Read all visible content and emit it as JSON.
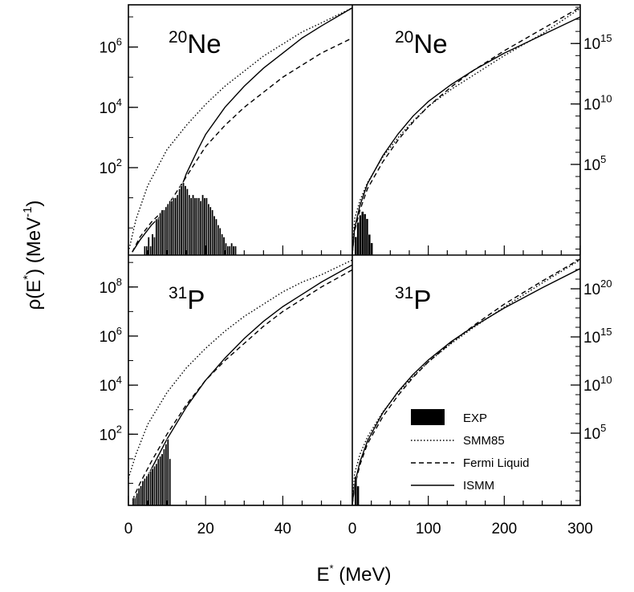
{
  "chart_data": [
    {
      "type": "line",
      "panel": "top-left",
      "nucleus": {
        "mass": "20",
        "symbol": "Ne"
      },
      "xlim": [
        0,
        58
      ],
      "y_log10_range": [
        -0.9,
        7.4
      ],
      "y_ticks": [
        {
          "base": "10",
          "exp": "2",
          "log": 2
        },
        {
          "base": "10",
          "exp": "4",
          "log": 4
        },
        {
          "base": "10",
          "exp": "6",
          "log": 6
        }
      ],
      "series": [
        {
          "id": "smm85",
          "style": "dotted",
          "x": [
            0,
            2,
            5,
            10,
            15,
            20,
            25,
            30,
            35,
            40,
            45,
            50,
            58
          ],
          "y": [
            -0.8,
            0.3,
            1.4,
            2.6,
            3.4,
            4.1,
            4.7,
            5.2,
            5.7,
            6.1,
            6.5,
            6.8,
            7.3
          ]
        },
        {
          "id": "fermi",
          "style": "dashed",
          "x": [
            1,
            3,
            6,
            10,
            15,
            20,
            25,
            30,
            35,
            40,
            45,
            50,
            58
          ],
          "y": [
            -0.8,
            -0.3,
            0.2,
            0.7,
            1.7,
            2.7,
            3.4,
            4.0,
            4.5,
            5.0,
            5.4,
            5.8,
            6.3
          ]
        },
        {
          "id": "ismm",
          "style": "solid",
          "x": [
            1,
            3,
            6,
            10,
            13,
            15,
            18,
            20,
            25,
            30,
            35,
            40,
            45,
            50,
            58
          ],
          "y": [
            -0.8,
            -0.4,
            0.1,
            0.6,
            1.1,
            1.8,
            2.6,
            3.1,
            4.0,
            4.7,
            5.3,
            5.8,
            6.3,
            6.7,
            7.3
          ]
        },
        {
          "id": "exp",
          "style": "histogram",
          "bin_width": 0.5,
          "x": [
            4,
            4.5,
            5,
            5.5,
            6,
            6.5,
            7,
            7.5,
            8,
            8.5,
            9,
            9.5,
            10,
            10.5,
            11,
            11.5,
            12,
            12.5,
            13,
            13.5,
            14,
            14.5,
            15,
            15.5,
            16,
            16.5,
            17,
            17.5,
            18,
            18.5,
            19,
            19.5,
            20,
            20.5,
            21,
            21.5,
            22,
            22.5,
            23,
            23.5,
            24,
            24.5,
            25,
            25.5,
            26,
            26.5,
            27,
            27.5
          ],
          "y": [
            -0.6,
            -0.6,
            -0.3,
            -0.6,
            -0.2,
            -0.3,
            0.3,
            0.3,
            0.5,
            0.6,
            0.6,
            0.7,
            0.8,
            0.9,
            0.9,
            1.0,
            1.0,
            1.1,
            1.3,
            1.4,
            1.5,
            1.4,
            1.3,
            1.1,
            1.0,
            1.1,
            1.0,
            1.0,
            1.0,
            0.9,
            1.1,
            1.0,
            1.0,
            0.8,
            0.7,
            0.6,
            0.4,
            0.3,
            0.1,
            0.0,
            -0.2,
            -0.3,
            -0.5,
            -0.6,
            -0.6,
            -0.5,
            -0.6,
            -0.6
          ]
        }
      ]
    },
    {
      "type": "line",
      "panel": "top-right",
      "nucleus": {
        "mass": "20",
        "symbol": "Ne"
      },
      "xlim": [
        0,
        300
      ],
      "y_log10_range": [
        -2.5,
        18.2
      ],
      "y_ticks": [
        {
          "base": "10",
          "exp": "5",
          "log": 5
        },
        {
          "base": "10",
          "exp": "10",
          "log": 10
        },
        {
          "base": "10",
          "exp": "15",
          "log": 15
        }
      ],
      "series": [
        {
          "id": "smm85",
          "style": "dotted",
          "x": [
            0,
            3,
            10,
            20,
            40,
            60,
            80,
            100,
            130,
            160,
            200,
            250,
            300
          ],
          "y": [
            -2.4,
            0.5,
            2.0,
            3.5,
            5.6,
            7.2,
            8.6,
            9.8,
            11.2,
            12.4,
            14.0,
            15.8,
            17.9
          ]
        },
        {
          "id": "fermi",
          "style": "dashed",
          "x": [
            0,
            3,
            10,
            20,
            40,
            60,
            80,
            100,
            130,
            160,
            200,
            250,
            300
          ],
          "y": [
            -2.4,
            -0.5,
            1.2,
            3.0,
            5.2,
            7.0,
            8.5,
            9.8,
            11.4,
            12.8,
            14.4,
            16.2,
            18.0
          ]
        },
        {
          "id": "ismm",
          "style": "solid",
          "x": [
            0,
            3,
            10,
            20,
            40,
            60,
            80,
            100,
            130,
            160,
            200,
            250,
            300
          ],
          "y": [
            -2.4,
            -0.3,
            1.6,
            3.4,
            5.7,
            7.5,
            9.0,
            10.2,
            11.6,
            12.8,
            14.2,
            15.7,
            17.2
          ]
        },
        {
          "id": "exp",
          "style": "histogram",
          "bin_width": 3,
          "x": [
            3,
            6,
            9,
            12,
            15,
            18,
            21,
            24
          ],
          "y": [
            -1.0,
            0.2,
            0.8,
            1.1,
            0.9,
            0.5,
            -0.8,
            -1.5
          ]
        }
      ]
    },
    {
      "type": "line",
      "panel": "bottom-left",
      "nucleus": {
        "mass": "31",
        "symbol": "P"
      },
      "xlim": [
        0,
        58
      ],
      "y_log10_range": [
        -0.9,
        9.3
      ],
      "y_ticks": [
        {
          "base": "10",
          "exp": "2",
          "log": 2
        },
        {
          "base": "10",
          "exp": "4",
          "log": 4
        },
        {
          "base": "10",
          "exp": "6",
          "log": 6
        },
        {
          "base": "10",
          "exp": "8",
          "log": 8
        }
      ],
      "series": [
        {
          "id": "smm85",
          "style": "dotted",
          "x": [
            0,
            2,
            5,
            10,
            15,
            20,
            25,
            30,
            35,
            40,
            45,
            50,
            58
          ],
          "y": [
            0.2,
            1.2,
            2.4,
            3.7,
            4.7,
            5.5,
            6.2,
            6.8,
            7.3,
            7.8,
            8.2,
            8.5,
            9.1
          ]
        },
        {
          "id": "fermi",
          "style": "dashed",
          "x": [
            1,
            3,
            6,
            10,
            15,
            20,
            25,
            30,
            35,
            40,
            45,
            50,
            58
          ],
          "y": [
            -0.7,
            0.0,
            0.9,
            2.0,
            3.2,
            4.2,
            5.0,
            5.7,
            6.4,
            7.0,
            7.5,
            8.0,
            8.7
          ]
        },
        {
          "id": "ismm",
          "style": "solid",
          "x": [
            1,
            3,
            6,
            10,
            15,
            20,
            25,
            30,
            35,
            40,
            45,
            50,
            58
          ],
          "y": [
            -0.8,
            -0.3,
            0.6,
            1.8,
            3.1,
            4.2,
            5.1,
            5.9,
            6.6,
            7.2,
            7.7,
            8.2,
            8.9
          ]
        },
        {
          "id": "exp",
          "style": "histogram",
          "bin_width": 0.5,
          "x": [
            1,
            1.5,
            2,
            2.5,
            3,
            3.5,
            4,
            4.5,
            5,
            5.5,
            6,
            6.5,
            7,
            7.5,
            8,
            8.5,
            9,
            9.5,
            10,
            10.5
          ],
          "y": [
            -0.6,
            -0.6,
            -0.4,
            -0.2,
            -0.1,
            0.1,
            0.2,
            0.3,
            0.4,
            0.5,
            0.6,
            0.7,
            0.8,
            1.0,
            1.1,
            1.2,
            1.4,
            1.6,
            1.8,
            1.0
          ]
        }
      ]
    },
    {
      "type": "line",
      "panel": "bottom-right",
      "nucleus": {
        "mass": "31",
        "symbol": "P"
      },
      "xlim": [
        0,
        300
      ],
      "y_log10_range": [
        -2.5,
        23.5
      ],
      "y_ticks": [
        {
          "base": "10",
          "exp": "5",
          "log": 5
        },
        {
          "base": "10",
          "exp": "10",
          "log": 10
        },
        {
          "base": "10",
          "exp": "15",
          "log": 15
        },
        {
          "base": "10",
          "exp": "20",
          "log": 20
        }
      ],
      "series": [
        {
          "id": "smm85",
          "style": "dotted",
          "x": [
            0,
            3,
            10,
            20,
            40,
            60,
            80,
            100,
            130,
            160,
            200,
            250,
            300
          ],
          "y": [
            -2.4,
            0.8,
            2.8,
            4.6,
            7.2,
            9.2,
            10.9,
            12.4,
            14.3,
            16.0,
            18.1,
            20.6,
            23.0
          ]
        },
        {
          "id": "fermi",
          "style": "dashed",
          "x": [
            0,
            3,
            10,
            20,
            40,
            60,
            80,
            100,
            130,
            160,
            200,
            250,
            300
          ],
          "y": [
            -2.4,
            -0.6,
            1.7,
            3.9,
            6.7,
            8.9,
            10.8,
            12.4,
            14.4,
            16.2,
            18.4,
            20.8,
            23.1
          ]
        },
        {
          "id": "ismm",
          "style": "solid",
          "x": [
            0,
            3,
            10,
            20,
            40,
            60,
            80,
            100,
            130,
            160,
            200,
            250,
            300
          ],
          "y": [
            -2.4,
            -0.3,
            2.0,
            4.2,
            7.1,
            9.3,
            11.1,
            12.6,
            14.5,
            16.1,
            18.0,
            20.1,
            22.1
          ]
        },
        {
          "id": "exp",
          "style": "histogram",
          "bin_width": 3,
          "x": [
            3,
            6
          ],
          "y": [
            0.5,
            -0.5
          ]
        }
      ]
    }
  ],
  "axes": {
    "xlabel": {
      "base": "E",
      "sup": "*",
      "unit": " (MeV)"
    },
    "ylabel": {
      "pre": "ρ(E",
      "sup": "*",
      "mid": ") (MeV",
      "sup2": "-1",
      "post": ")"
    },
    "left_xticks": [
      "0",
      "20",
      "40"
    ],
    "right_xticks": [
      "0",
      "100",
      "200",
      "300"
    ]
  },
  "legend": {
    "placement": "bottom-right panel",
    "entries": [
      {
        "id": "exp",
        "label": "EXP"
      },
      {
        "id": "smm85",
        "label": "SMM85"
      },
      {
        "id": "fermi",
        "label": "Fermi Liquid"
      },
      {
        "id": "ismm",
        "label": "ISMM"
      }
    ]
  }
}
